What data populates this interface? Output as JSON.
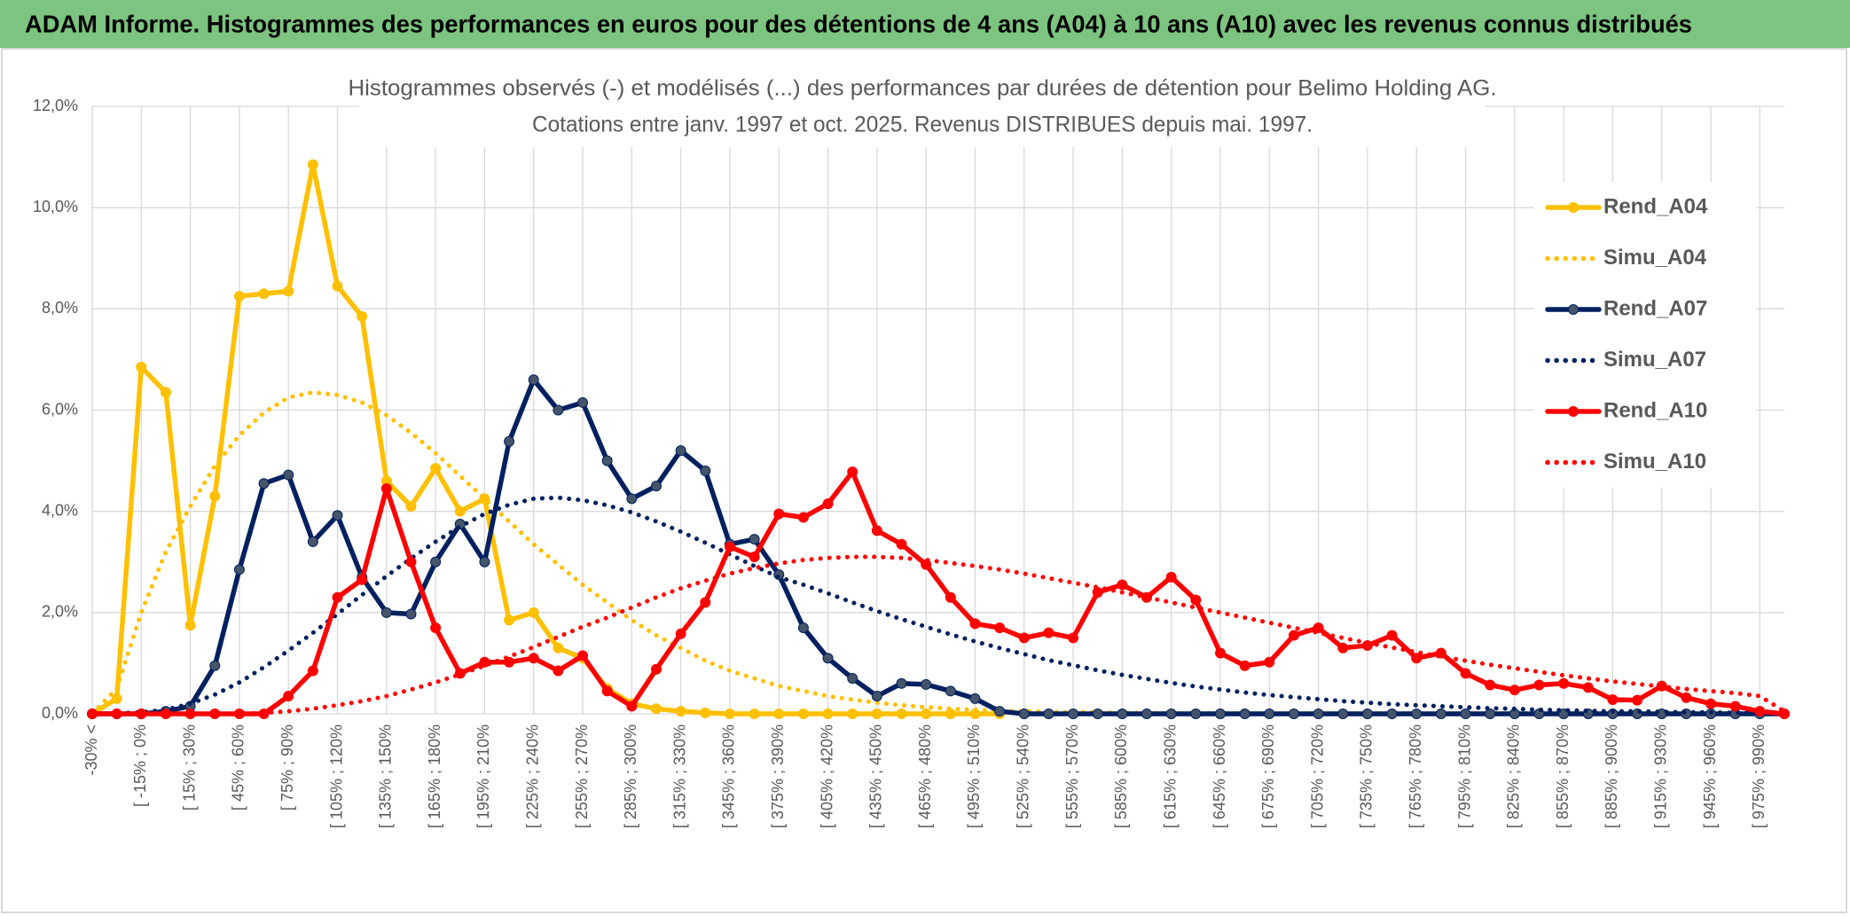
{
  "header": {
    "title": "ADAM Informe. Histogrammes des performances en euros pour des détentions de 4 ans (A04) à 10 ans (A10) avec les revenus connus distribués"
  },
  "chart_data": {
    "type": "line",
    "title": "Histogrammes observés (-) et modélisés (...) des performances par durées de détention pour Belimo Holding AG.",
    "subtitle": "Cotations entre janv. 1997 et oct. 2025. Revenus DISTRIBUES depuis mai. 1997.",
    "categories": [
      "-30% <",
      null,
      "[ -15% ; 0%",
      null,
      "[ 15% ; 30%",
      null,
      "[ 45% ; 60%",
      null,
      "[ 75% ; 90%",
      null,
      "[ 105% ; 120%",
      null,
      "[ 135% ; 150%",
      null,
      "[ 165% ; 180%",
      null,
      "[ 195% ; 210%",
      null,
      "[ 225% ; 240%",
      null,
      "[ 255% ; 270%",
      null,
      "[ 285% ; 300%",
      null,
      "[ 315% ; 330%",
      null,
      "[ 345% ; 360%",
      null,
      "[ 375% ; 390%",
      null,
      "[ 405% ; 420%",
      null,
      "[ 435% ; 450%",
      null,
      "[ 465% ; 480%",
      null,
      "[ 495% ; 510%",
      null,
      "[ 525% ; 540%",
      null,
      "[ 555% ; 570%",
      null,
      "[ 585% ; 600%",
      null,
      "[ 615% ; 630%",
      null,
      "[ 645% ; 660%",
      null,
      "[ 675% ; 690%",
      null,
      "[ 705% ; 720%",
      null,
      "[ 735% ; 750%",
      null,
      "[ 765% ; 780%",
      null,
      "[ 795% ; 810%",
      null,
      "[ 825% ; 840%",
      null,
      "[ 855% ; 870%",
      null,
      "[ 885% ; 900%",
      null,
      "[ 915% ; 930%",
      null,
      "[ 945% ; 960%",
      null,
      "[ 975% ; 990%",
      null
    ],
    "series": [
      {
        "name": "Rend_A04",
        "color": "#FFC000",
        "style": "solid",
        "values": [
          0,
          0.3,
          6.85,
          6.35,
          1.75,
          4.3,
          8.25,
          8.3,
          8.35,
          10.85,
          8.45,
          7.85,
          4.6,
          4.1,
          4.85,
          4.0,
          4.25,
          1.85,
          2.0,
          1.3,
          1.1,
          0.5,
          0.2,
          0.1,
          0.05,
          0.02,
          0,
          0,
          0,
          0,
          0,
          0,
          0,
          0,
          0,
          0,
          0,
          0,
          null,
          null,
          null,
          null,
          null,
          null,
          null,
          null,
          null,
          null,
          null,
          null,
          null,
          null,
          null,
          null,
          null,
          null,
          null,
          null,
          null,
          null,
          null,
          null,
          null,
          null,
          null,
          null,
          null,
          null,
          null,
          null
        ]
      },
      {
        "name": "Simu_A04",
        "color": "#FFC000",
        "style": "dotted",
        "values": [
          0,
          0.5,
          2.0,
          3.2,
          4.1,
          4.9,
          5.5,
          5.95,
          6.25,
          6.35,
          6.3,
          6.15,
          5.9,
          5.55,
          5.15,
          4.7,
          4.25,
          3.8,
          3.35,
          2.95,
          2.55,
          2.2,
          1.85,
          1.55,
          1.3,
          1.05,
          0.85,
          0.7,
          0.55,
          0.45,
          0.35,
          0.28,
          0.22,
          0.17,
          0.13,
          0.1,
          0.08,
          0.06,
          0.05,
          0.04,
          0.03,
          0.03,
          0.02,
          0.02,
          0.01,
          0.01,
          0.01,
          0.01,
          0,
          0,
          0,
          0,
          0,
          0,
          0,
          0,
          0,
          0,
          0,
          0,
          0,
          0,
          0,
          0,
          0,
          0,
          0,
          0,
          0,
          0
        ]
      },
      {
        "name": "Rend_A07",
        "color": "#002060",
        "style": "solid",
        "values": [
          0,
          0,
          0,
          0.05,
          0.15,
          0.95,
          2.85,
          4.55,
          4.72,
          3.4,
          3.92,
          2.7,
          2.0,
          1.97,
          3.0,
          3.75,
          3.0,
          5.38,
          6.6,
          6.0,
          6.15,
          5.0,
          4.25,
          4.5,
          5.2,
          4.8,
          3.35,
          3.45,
          2.75,
          1.7,
          1.1,
          0.7,
          0.35,
          0.6,
          0.58,
          0.45,
          0.3,
          0.05,
          0,
          0,
          0,
          0,
          0,
          0,
          0,
          0,
          0,
          0,
          0,
          0,
          0,
          0,
          0,
          0,
          0,
          0,
          0,
          0,
          0,
          0,
          0,
          0,
          0,
          0,
          0,
          0,
          0,
          0,
          0,
          0
        ]
      },
      {
        "name": "Simu_A07",
        "color": "#002060",
        "style": "dotted",
        "values": [
          0,
          0.01,
          0.03,
          0.08,
          0.2,
          0.38,
          0.62,
          0.92,
          1.25,
          1.6,
          1.97,
          2.35,
          2.72,
          3.07,
          3.4,
          3.7,
          3.95,
          4.13,
          4.25,
          4.27,
          4.22,
          4.12,
          3.98,
          3.8,
          3.6,
          3.38,
          3.15,
          2.92,
          2.7,
          2.55,
          2.38,
          2.2,
          2.03,
          1.87,
          1.72,
          1.57,
          1.43,
          1.3,
          1.18,
          1.06,
          0.96,
          0.86,
          0.77,
          0.69,
          0.61,
          0.54,
          0.48,
          0.42,
          0.37,
          0.33,
          0.29,
          0.25,
          0.22,
          0.19,
          0.17,
          0.15,
          0.13,
          0.11,
          0.1,
          0.08,
          0.07,
          0.06,
          0.05,
          0.05,
          0.04,
          0.03,
          0.03,
          0.02,
          0.02,
          0.02
        ]
      },
      {
        "name": "Rend_A10",
        "color": "#FF0000",
        "style": "solid",
        "values": [
          0,
          0,
          0,
          0,
          0,
          0,
          0,
          0,
          0.35,
          0.85,
          2.3,
          2.65,
          4.45,
          3.0,
          1.7,
          0.8,
          1.02,
          1.02,
          1.1,
          0.85,
          1.15,
          0.45,
          0.15,
          0.88,
          1.58,
          2.2,
          3.3,
          3.1,
          3.95,
          3.88,
          4.15,
          4.78,
          3.62,
          3.35,
          2.95,
          2.3,
          1.78,
          1.7,
          1.5,
          1.6,
          1.5,
          2.4,
          2.55,
          2.3,
          2.7,
          2.25,
          1.2,
          0.95,
          1.02,
          1.55,
          1.7,
          1.3,
          1.35,
          1.55,
          1.1,
          1.2,
          0.8,
          0.57,
          0.47,
          0.57,
          0.6,
          0.52,
          0.28,
          0.27,
          0.55,
          0.32,
          0.2,
          0.15,
          0.05,
          0
        ]
      },
      {
        "name": "Simu_A10",
        "color": "#FF0000",
        "style": "dotted",
        "values": [
          0,
          0,
          0,
          0,
          0,
          0,
          0,
          0.02,
          0.05,
          0.1,
          0.17,
          0.25,
          0.35,
          0.48,
          0.62,
          0.78,
          0.95,
          1.13,
          1.32,
          1.52,
          1.72,
          1.9,
          2.1,
          2.3,
          2.48,
          2.63,
          2.77,
          2.88,
          2.97,
          3.04,
          3.08,
          3.1,
          3.1,
          3.08,
          3.04,
          2.98,
          2.92,
          2.85,
          2.77,
          2.68,
          2.59,
          2.5,
          2.4,
          2.3,
          2.2,
          2.1,
          2.0,
          1.9,
          1.8,
          1.7,
          1.6,
          1.5,
          1.4,
          1.31,
          1.22,
          1.13,
          1.05,
          0.97,
          0.9,
          0.83,
          0.76,
          0.7,
          0.64,
          0.59,
          0.54,
          0.49,
          0.45,
          0.41,
          0.35,
          0.05
        ]
      }
    ],
    "ylim": [
      0,
      12
    ],
    "yticks": [
      {
        "value": 0,
        "label": "0,0%"
      },
      {
        "value": 2,
        "label": "2,0%"
      },
      {
        "value": 4,
        "label": "4,0%"
      },
      {
        "value": 6,
        "label": "6,0%"
      },
      {
        "value": 8,
        "label": "8,0%"
      },
      {
        "value": 10,
        "label": "10,0%"
      },
      {
        "value": 12,
        "label": "12,0%"
      }
    ],
    "grid": true,
    "legend": "right"
  }
}
